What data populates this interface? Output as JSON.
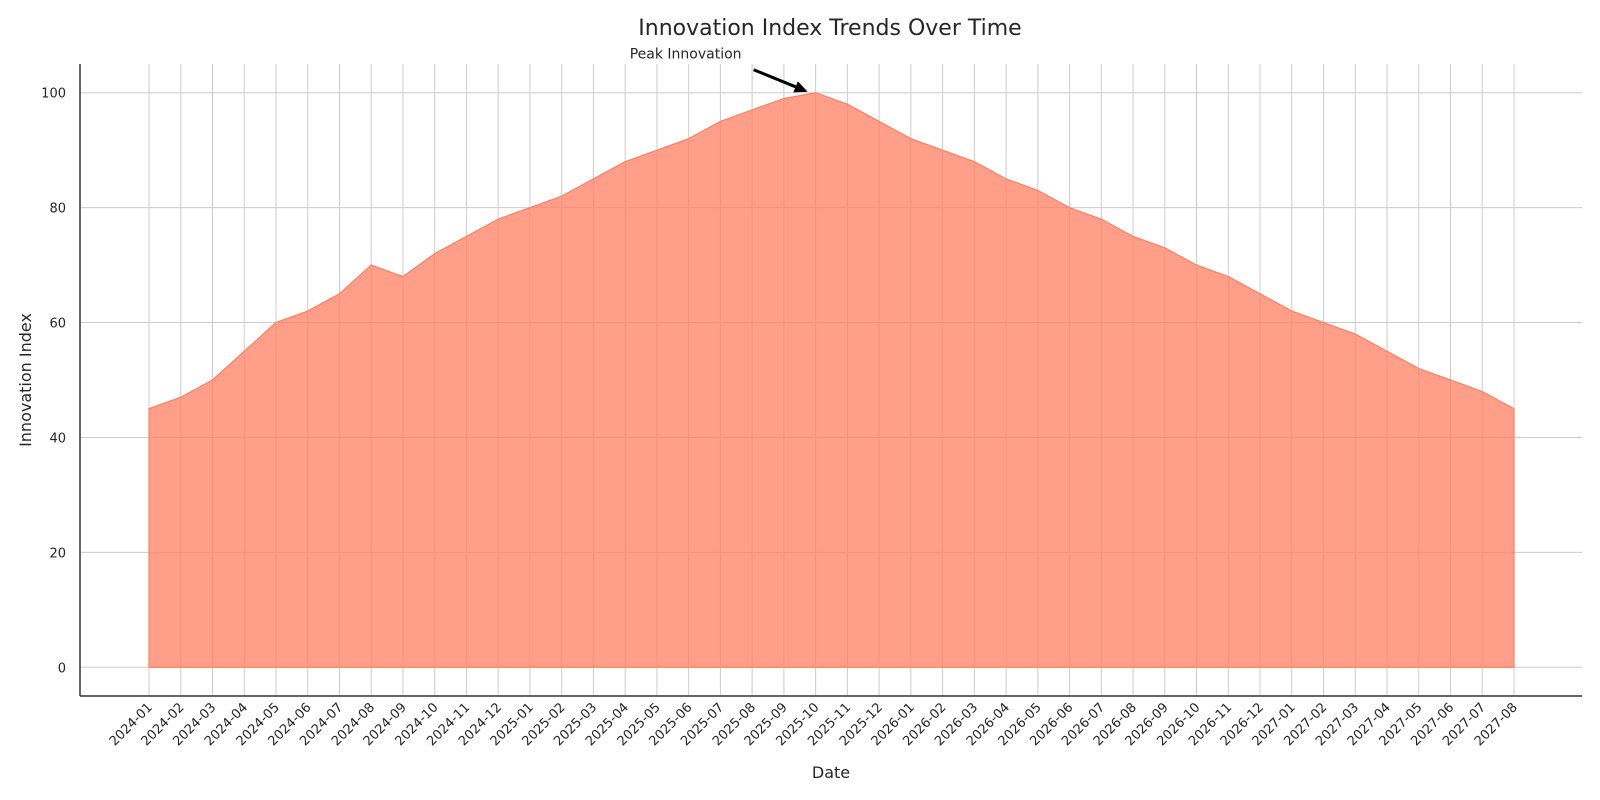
{
  "chart_data": {
    "type": "area",
    "title": "Innovation Index Trends Over Time",
    "xlabel": "Date",
    "ylabel": "Innovation Index",
    "x": [
      "2024-01",
      "2024-02",
      "2024-03",
      "2024-04",
      "2024-05",
      "2024-06",
      "2024-07",
      "2024-08",
      "2024-09",
      "2024-10",
      "2024-11",
      "2024-12",
      "2025-01",
      "2025-02",
      "2025-03",
      "2025-04",
      "2025-05",
      "2025-06",
      "2025-07",
      "2025-08",
      "2025-09",
      "2025-10",
      "2025-11",
      "2025-12",
      "2026-01",
      "2026-02",
      "2026-03",
      "2026-04",
      "2026-05",
      "2026-06",
      "2026-07",
      "2026-08",
      "2026-09",
      "2026-10",
      "2026-11",
      "2026-12",
      "2027-01",
      "2027-02",
      "2027-03",
      "2027-04",
      "2027-05",
      "2027-06",
      "2027-07",
      "2027-08"
    ],
    "series": [
      {
        "values": [
          45,
          47,
          50,
          55,
          60,
          62,
          65,
          70,
          68,
          72,
          75,
          78,
          80,
          82,
          85,
          88,
          90,
          92,
          95,
          97,
          99,
          100,
          98,
          95,
          92,
          90,
          88,
          85,
          83,
          80,
          78,
          75,
          73,
          70,
          68,
          65,
          62,
          60,
          58,
          55,
          52,
          50,
          48,
          45
        ],
        "color": "#ff7f61"
      }
    ],
    "yticks": [
      0,
      20,
      40,
      60,
      80,
      100
    ],
    "ylim": [
      -5,
      105
    ],
    "grid": true,
    "annotation": {
      "text": "Peak Innovation",
      "x": "2025-10",
      "y": 100
    }
  }
}
